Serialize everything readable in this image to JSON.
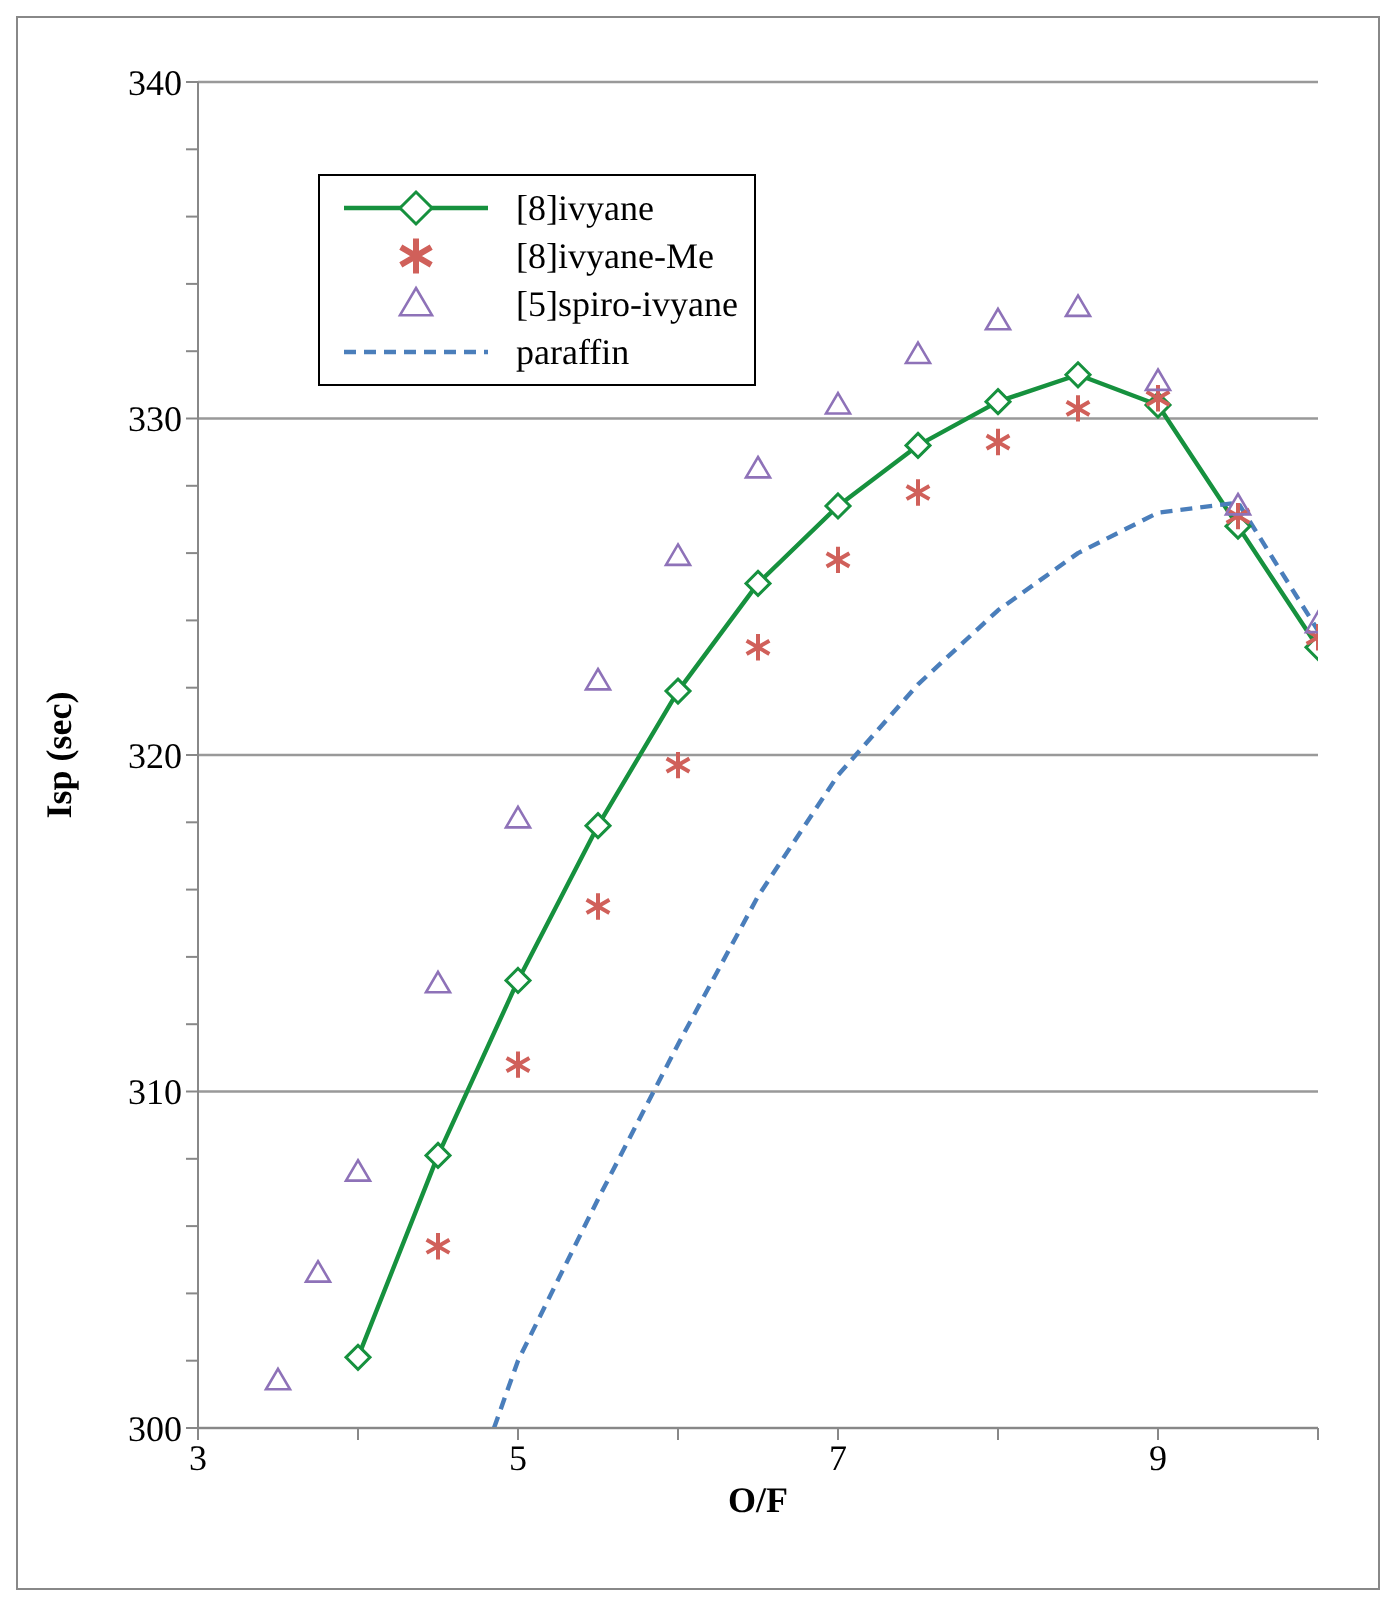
{
  "chart_data": {
    "type": "line",
    "xlabel": "O/F",
    "ylabel": "Isp (sec)",
    "xlim": [
      3,
      10
    ],
    "ylim": [
      300,
      340
    ],
    "xticks": [
      3,
      {
        "value": 4,
        "label": null
      },
      5,
      {
        "value": 6,
        "label": null
      },
      7,
      {
        "value": 8,
        "label": null
      },
      9,
      {
        "value": 10,
        "label": null
      }
    ],
    "yticks": [
      300,
      {
        "value": 302,
        "label": null
      },
      {
        "value": 304,
        "label": null
      },
      {
        "value": 306,
        "label": null
      },
      {
        "value": 308,
        "label": null
      },
      310,
      {
        "value": 312,
        "label": null
      },
      {
        "value": 314,
        "label": null
      },
      {
        "value": 316,
        "label": null
      },
      {
        "value": 318,
        "label": null
      },
      320,
      {
        "value": 322,
        "label": null
      },
      {
        "value": 324,
        "label": null
      },
      {
        "value": 326,
        "label": null
      },
      {
        "value": 328,
        "label": null
      },
      330,
      {
        "value": 332,
        "label": null
      },
      {
        "value": 334,
        "label": null
      },
      {
        "value": 336,
        "label": null
      },
      {
        "value": 338,
        "label": null
      },
      340
    ],
    "grid": "y",
    "legend": "top left",
    "series": [
      {
        "name": "[8]ivyane",
        "marker": "diamond",
        "line_style": "solid",
        "color": "#16913e",
        "x": [
          4,
          4.5,
          5,
          5.5,
          6,
          6.5,
          7,
          7.5,
          8,
          8.5,
          9,
          9.5,
          10
        ],
        "values": [
          302.1,
          308.1,
          313.3,
          317.9,
          321.9,
          325.1,
          327.4,
          329.2,
          330.5,
          331.3,
          330.4,
          326.8,
          323.2
        ]
      },
      {
        "name": "[8]ivyane-Me",
        "type": "scatter",
        "marker": "cross",
        "color": "#d0605a",
        "x": [
          4.5,
          5,
          5.5,
          6,
          6.5,
          7,
          7.5,
          8,
          8.5,
          9,
          9.5,
          10
        ],
        "values": [
          305.4,
          310.8,
          315.5,
          319.7,
          323.2,
          325.8,
          327.8,
          329.3,
          330.3,
          330.6,
          327.1,
          323.5
        ]
      },
      {
        "name": "[5]spiro-ivyane",
        "type": "scatter",
        "marker": "triangle",
        "color": "#8e72b8",
        "x": [
          3.5,
          3.75,
          4,
          4.5,
          5,
          5.5,
          6,
          6.5,
          7,
          7.5,
          8,
          8.5,
          9,
          9.5,
          10
        ],
        "values": [
          301.4,
          304.6,
          307.6,
          313.2,
          318.1,
          322.2,
          325.9,
          328.5,
          330.4,
          331.9,
          332.9,
          333.3,
          331.1,
          327.4,
          323.9
        ]
      },
      {
        "name": "paraffin",
        "marker": "none",
        "line_style": "dashed",
        "color": "#4a7ebb",
        "x": [
          4.85,
          5,
          5.5,
          6,
          6.5,
          7,
          7.5,
          8,
          8.5,
          9,
          9.5,
          10
        ],
        "values": [
          300,
          302,
          306.8,
          311.4,
          315.8,
          319.4,
          322.1,
          324.3,
          326,
          327.2,
          327.5,
          323.7
        ]
      }
    ]
  }
}
